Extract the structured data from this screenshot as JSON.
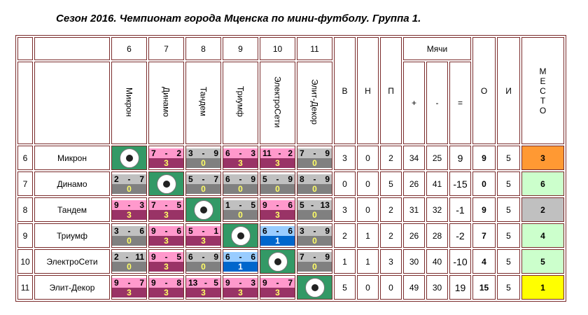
{
  "title": "Сезон 2016. Чемпионат города Мценска по мини-футболу. Группа 1.",
  "header": {
    "col_nums": [
      "6",
      "7",
      "8",
      "9",
      "10",
      "11"
    ],
    "col_names": [
      "Микрон",
      "Динамо",
      "Тандем",
      "Триумф",
      "ЭлектроСети",
      "Элит-Декор"
    ],
    "w": "В",
    "d": "Н",
    "l": "П",
    "goals": "Мячи",
    "gf": "+",
    "ga": "-",
    "gd": "=",
    "pts": "О",
    "games": "И",
    "place": [
      "М",
      "Е",
      "С",
      "Т",
      "О"
    ]
  },
  "colors": {
    "win_top": "#ff99cc",
    "win_bottom": "#993366",
    "loss_top": "#c0c0c0",
    "loss_bottom": "#808080",
    "draw_top": "#99ccff",
    "draw_bottom": "#0066cc",
    "ball_bg": "#339966"
  },
  "rows": [
    {
      "num": "6",
      "team": "Микрон",
      "cells": [
        null,
        {
          "a": "7",
          "b": "2",
          "p": "3"
        },
        {
          "a": "3",
          "b": "9",
          "p": "0"
        },
        {
          "a": "6",
          "b": "3",
          "p": "3"
        },
        {
          "a": "11",
          "b": "2",
          "p": "3"
        },
        {
          "a": "7",
          "b": "9",
          "p": "0"
        }
      ],
      "w": "3",
      "d": "0",
      "l": "2",
      "gf": "34",
      "ga": "25",
      "gd": "9",
      "pts": "9",
      "games": "5",
      "place": "3",
      "place_color": "#ff9933"
    },
    {
      "num": "7",
      "team": "Динамо",
      "cells": [
        {
          "a": "2",
          "b": "7",
          "p": "0"
        },
        null,
        {
          "a": "5",
          "b": "7",
          "p": "0"
        },
        {
          "a": "6",
          "b": "9",
          "p": "0"
        },
        {
          "a": "5",
          "b": "9",
          "p": "0"
        },
        {
          "a": "8",
          "b": "9",
          "p": "0"
        }
      ],
      "w": "0",
      "d": "0",
      "l": "5",
      "gf": "26",
      "ga": "41",
      "gd": "-15",
      "pts": "0",
      "games": "5",
      "place": "6",
      "place_color": "#ccffcc"
    },
    {
      "num": "8",
      "team": "Тандем",
      "cells": [
        {
          "a": "9",
          "b": "3",
          "p": "3"
        },
        {
          "a": "7",
          "b": "5",
          "p": "3"
        },
        null,
        {
          "a": "1",
          "b": "5",
          "p": "0"
        },
        {
          "a": "9",
          "b": "6",
          "p": "3"
        },
        {
          "a": "5",
          "b": "13",
          "p": "0"
        }
      ],
      "w": "3",
      "d": "0",
      "l": "2",
      "gf": "31",
      "ga": "32",
      "gd": "-1",
      "pts": "9",
      "games": "5",
      "place": "2",
      "place_color": "#c0c0c0"
    },
    {
      "num": "9",
      "team": "Триумф",
      "cells": [
        {
          "a": "3",
          "b": "6",
          "p": "0"
        },
        {
          "a": "9",
          "b": "6",
          "p": "3"
        },
        {
          "a": "5",
          "b": "1",
          "p": "3"
        },
        null,
        {
          "a": "6",
          "b": "6",
          "p": "1"
        },
        {
          "a": "3",
          "b": "9",
          "p": "0"
        }
      ],
      "w": "2",
      "d": "1",
      "l": "2",
      "gf": "26",
      "ga": "28",
      "gd": "-2",
      "pts": "7",
      "games": "5",
      "place": "4",
      "place_color": "#ccffcc"
    },
    {
      "num": "10",
      "team": "ЭлектроСети",
      "cells": [
        {
          "a": "2",
          "b": "11",
          "p": "0"
        },
        {
          "a": "9",
          "b": "5",
          "p": "3"
        },
        {
          "a": "6",
          "b": "9",
          "p": "0"
        },
        {
          "a": "6",
          "b": "6",
          "p": "1"
        },
        null,
        {
          "a": "7",
          "b": "9",
          "p": "0"
        }
      ],
      "w": "1",
      "d": "1",
      "l": "3",
      "gf": "30",
      "ga": "40",
      "gd": "-10",
      "pts": "4",
      "games": "5",
      "place": "5",
      "place_color": "#ccffcc"
    },
    {
      "num": "11",
      "team": "Элит-Декор",
      "cells": [
        {
          "a": "9",
          "b": "7",
          "p": "3"
        },
        {
          "a": "9",
          "b": "8",
          "p": "3"
        },
        {
          "a": "13",
          "b": "5",
          "p": "3"
        },
        {
          "a": "9",
          "b": "3",
          "p": "3"
        },
        {
          "a": "9",
          "b": "7",
          "p": "3"
        },
        null
      ],
      "w": "5",
      "d": "0",
      "l": "0",
      "gf": "49",
      "ga": "30",
      "gd": "19",
      "pts": "15",
      "games": "5",
      "place": "1",
      "place_color": "#ffff00"
    }
  ]
}
